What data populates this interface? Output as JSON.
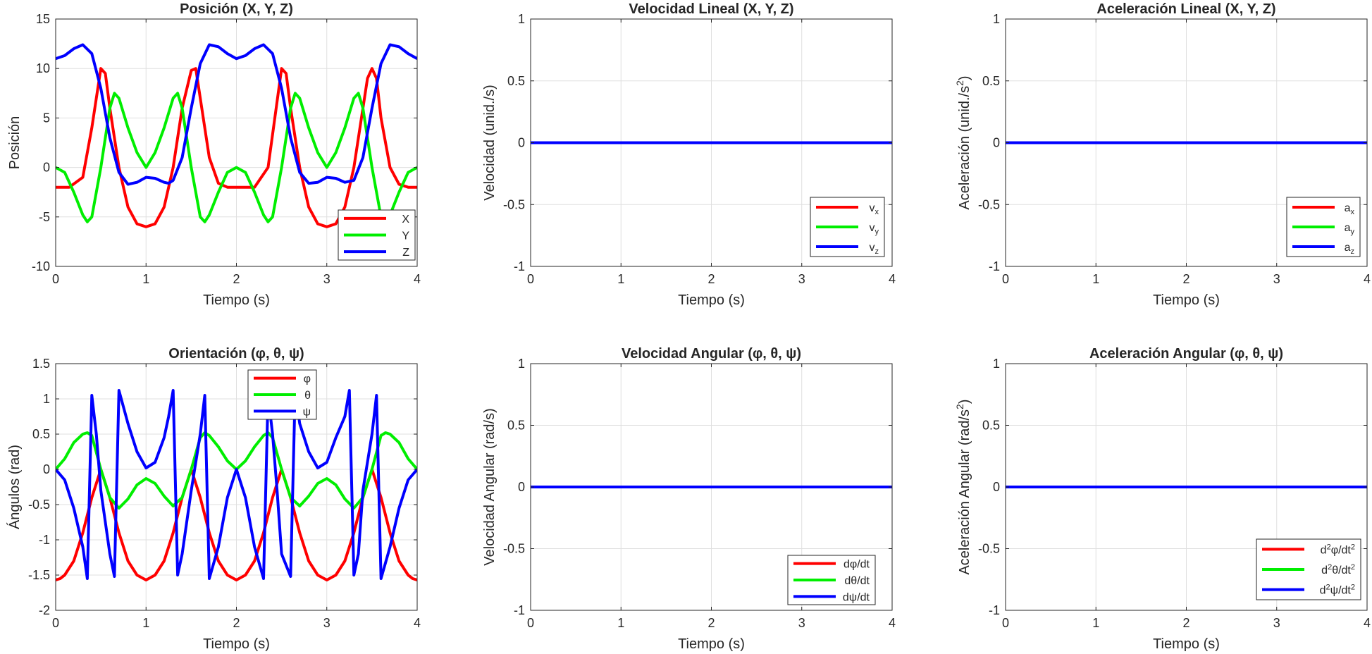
{
  "chart_data": [
    {
      "type": "line",
      "title": "Posición (X, Y, Z)",
      "xlabel": "Tiempo (s)",
      "ylabel": "Posición",
      "xlim": [
        0,
        4
      ],
      "ylim": [
        -10,
        15
      ],
      "xticks": [
        "0",
        "1",
        "2",
        "3",
        "4"
      ],
      "yticks": [
        "-10",
        "-5",
        "0",
        "5",
        "10",
        "15"
      ],
      "ytick_values": [
        -10,
        -5,
        0,
        5,
        10,
        15
      ],
      "grid": true,
      "legend_position": "bottom-right",
      "series": [
        {
          "name": "X",
          "color": "#ff0000",
          "x": [
            0,
            0.15,
            0.3,
            0.4,
            0.5,
            0.55,
            0.6,
            0.7,
            0.8,
            0.9,
            1.0,
            1.1,
            1.2,
            1.3,
            1.4,
            1.5,
            1.55,
            1.6,
            1.7,
            1.8,
            1.9,
            2.0,
            2.1,
            2.2,
            2.35,
            2.5,
            2.55,
            2.6,
            2.7,
            2.8,
            2.9,
            3.0,
            3.1,
            3.2,
            3.3,
            3.45,
            3.5,
            3.55,
            3.6,
            3.7,
            3.8,
            3.9,
            4.0
          ],
          "y": [
            -2,
            -2,
            -1,
            4,
            10,
            9.5,
            6,
            0,
            -4,
            -5.7,
            -6,
            -5.7,
            -4,
            0,
            6,
            9.8,
            10,
            7,
            1,
            -1.6,
            -2,
            -2,
            -2,
            -2,
            0,
            10,
            9.5,
            6,
            0,
            -4,
            -5.7,
            -6,
            -5.7,
            -4,
            0,
            9,
            10,
            9,
            5,
            0,
            -1.7,
            -2,
            -2
          ]
        },
        {
          "name": "Y",
          "color": "#00ee00",
          "x": [
            0,
            0.1,
            0.2,
            0.3,
            0.35,
            0.4,
            0.5,
            0.6,
            0.65,
            0.7,
            0.8,
            0.9,
            1.0,
            1.1,
            1.2,
            1.3,
            1.35,
            1.4,
            1.5,
            1.6,
            1.65,
            1.7,
            1.8,
            1.9,
            2.0,
            2.1,
            2.2,
            2.3,
            2.35,
            2.4,
            2.5,
            2.6,
            2.65,
            2.7,
            2.8,
            2.9,
            3.0,
            3.1,
            3.2,
            3.3,
            3.35,
            3.4,
            3.5,
            3.6,
            3.65,
            3.7,
            3.8,
            3.9,
            4.0
          ],
          "y": [
            0,
            -0.5,
            -2.5,
            -4.8,
            -5.5,
            -5,
            0,
            6,
            7.5,
            7,
            4,
            1.5,
            0,
            1.5,
            4,
            7,
            7.5,
            6,
            0,
            -5,
            -5.5,
            -4.8,
            -2.5,
            -0.5,
            0,
            -0.5,
            -2.5,
            -4.8,
            -5.5,
            -5,
            0,
            6,
            7.5,
            7,
            4,
            1.5,
            0,
            1.5,
            4,
            7,
            7.5,
            6,
            0,
            -5,
            -5.5,
            -4.8,
            -2.5,
            -0.5,
            0
          ]
        },
        {
          "name": "Z",
          "color": "#0000ff",
          "x": [
            0,
            0.1,
            0.2,
            0.3,
            0.4,
            0.5,
            0.6,
            0.7,
            0.8,
            0.9,
            1.0,
            1.1,
            1.2,
            1.25,
            1.3,
            1.4,
            1.5,
            1.6,
            1.7,
            1.8,
            1.9,
            2.0,
            2.1,
            2.2,
            2.3,
            2.4,
            2.5,
            2.6,
            2.7,
            2.8,
            2.9,
            3.0,
            3.1,
            3.2,
            3.3,
            3.4,
            3.5,
            3.6,
            3.7,
            3.8,
            3.9,
            4.0
          ],
          "y": [
            11,
            11.3,
            12,
            12.4,
            11.5,
            8,
            3,
            -0.5,
            -1.7,
            -1.5,
            -1,
            -1.1,
            -1.5,
            -1.6,
            -1.3,
            1,
            6,
            10.5,
            12.4,
            12.2,
            11.5,
            11,
            11.3,
            12,
            12.4,
            11.5,
            8,
            3,
            -0.5,
            -1.6,
            -1.5,
            -1,
            -1.1,
            -1.5,
            -1.3,
            1,
            6,
            10.5,
            12.4,
            12.2,
            11.5,
            11
          ]
        }
      ]
    },
    {
      "type": "line",
      "title": "Velocidad Lineal (X, Y, Z)",
      "xlabel": "Tiempo (s)",
      "ylabel": "Velocidad (unid./s)",
      "xlim": [
        0,
        4
      ],
      "ylim": [
        -1,
        1
      ],
      "xticks": [
        "0",
        "1",
        "2",
        "3",
        "4"
      ],
      "yticks": [
        "-1",
        "-0.5",
        "0",
        "0.5",
        "1"
      ],
      "ytick_values": [
        -1,
        -0.5,
        0,
        0.5,
        1
      ],
      "grid": true,
      "legend_position": "bottom-right",
      "series": [
        {
          "name": "v",
          "sub": "x",
          "color": "#ff0000",
          "x": [
            0,
            4
          ],
          "y": [
            0,
            0
          ]
        },
        {
          "name": "v",
          "sub": "y",
          "color": "#00ee00",
          "x": [
            0,
            4
          ],
          "y": [
            0,
            0
          ]
        },
        {
          "name": "v",
          "sub": "z",
          "color": "#0000ff",
          "x": [
            0,
            4
          ],
          "y": [
            0,
            0
          ]
        }
      ]
    },
    {
      "type": "line",
      "title": "Aceleración Lineal (X, Y, Z)",
      "xlabel": "Tiempo (s)",
      "ylabel": "Aceleración  (unid./s",
      "ylabel_sup": "2",
      "ylabel_end": ")",
      "xlim": [
        0,
        4
      ],
      "ylim": [
        -1,
        1
      ],
      "xticks": [
        "0",
        "1",
        "2",
        "3",
        "4"
      ],
      "yticks": [
        "-1",
        "-0.5",
        "0",
        "0.5",
        "1"
      ],
      "ytick_values": [
        -1,
        -0.5,
        0,
        0.5,
        1
      ],
      "grid": true,
      "legend_position": "bottom-right",
      "series": [
        {
          "name": "a",
          "sub": "x",
          "color": "#ff0000",
          "x": [
            0,
            4
          ],
          "y": [
            0,
            0
          ]
        },
        {
          "name": "a",
          "sub": "y",
          "color": "#00ee00",
          "x": [
            0,
            4
          ],
          "y": [
            0,
            0
          ]
        },
        {
          "name": "a",
          "sub": "z",
          "color": "#0000ff",
          "x": [
            0,
            4
          ],
          "y": [
            0,
            0
          ]
        }
      ]
    },
    {
      "type": "line",
      "title": "Orientación (φ, θ, ψ)",
      "xlabel": "Tiempo (s)",
      "ylabel": "Ángulos (rad)",
      "xlim": [
        0,
        4
      ],
      "ylim": [
        -2,
        1.5
      ],
      "xticks": [
        "0",
        "1",
        "2",
        "3",
        "4"
      ],
      "yticks": [
        "-2",
        "-1.5",
        "-1",
        "-0.5",
        "0",
        "0.5",
        "1",
        "1.5"
      ],
      "ytick_values": [
        -2,
        -1.5,
        -1,
        -0.5,
        0,
        0.5,
        1,
        1.5
      ],
      "grid": true,
      "legend_position": "top-right",
      "series": [
        {
          "name": "φ",
          "color": "#ff0000",
          "x": [
            0,
            0.05,
            0.1,
            0.2,
            0.3,
            0.4,
            0.5,
            0.6,
            0.7,
            0.8,
            0.9,
            1.0,
            1.1,
            1.2,
            1.3,
            1.4,
            1.5,
            1.6,
            1.7,
            1.8,
            1.9,
            2.0,
            2.1,
            2.2,
            2.3,
            2.4,
            2.5,
            2.6,
            2.7,
            2.8,
            2.9,
            3.0,
            3.1,
            3.2,
            3.3,
            3.4,
            3.5,
            3.6,
            3.7,
            3.8,
            3.9,
            3.95,
            4.0
          ],
          "y": [
            -1.57,
            -1.55,
            -1.5,
            -1.3,
            -0.9,
            -0.4,
            0,
            -0.4,
            -0.9,
            -1.3,
            -1.5,
            -1.57,
            -1.5,
            -1.3,
            -0.9,
            -0.4,
            0,
            -0.4,
            -0.9,
            -1.3,
            -1.5,
            -1.57,
            -1.5,
            -1.3,
            -0.9,
            -0.4,
            0,
            -0.4,
            -0.9,
            -1.3,
            -1.5,
            -1.57,
            -1.5,
            -1.3,
            -0.9,
            -0.4,
            0,
            -0.4,
            -0.9,
            -1.3,
            -1.5,
            -1.55,
            -1.57
          ]
        },
        {
          "name": "θ",
          "color": "#00ee00",
          "x": [
            0,
            0.1,
            0.2,
            0.3,
            0.35,
            0.4,
            0.5,
            0.6,
            0.7,
            0.8,
            0.9,
            1.0,
            1.1,
            1.2,
            1.3,
            1.4,
            1.5,
            1.6,
            1.65,
            1.7,
            1.8,
            1.9,
            2.0,
            2.1,
            2.2,
            2.3,
            2.35,
            2.4,
            2.5,
            2.6,
            2.7,
            2.8,
            2.9,
            3.0,
            3.1,
            3.2,
            3.3,
            3.4,
            3.5,
            3.6,
            3.65,
            3.7,
            3.8,
            3.9,
            4.0
          ],
          "y": [
            0,
            0.15,
            0.38,
            0.5,
            0.52,
            0.48,
            0,
            -0.4,
            -0.55,
            -0.42,
            -0.22,
            -0.13,
            -0.2,
            -0.38,
            -0.52,
            -0.4,
            0,
            0.45,
            0.52,
            0.48,
            0.32,
            0.12,
            0,
            0.12,
            0.32,
            0.48,
            0.52,
            0.45,
            0,
            -0.4,
            -0.52,
            -0.38,
            -0.2,
            -0.13,
            -0.22,
            -0.42,
            -0.55,
            -0.4,
            0,
            0.48,
            0.52,
            0.5,
            0.38,
            0.15,
            0
          ]
        },
        {
          "name": "ψ",
          "color": "#0000ff",
          "x": [
            0,
            0.1,
            0.2,
            0.3,
            0.35,
            0.4,
            0.45,
            0.5,
            0.6,
            0.65,
            0.7,
            0.8,
            0.9,
            1.0,
            1.1,
            1.2,
            1.25,
            1.3,
            1.35,
            1.4,
            1.5,
            1.6,
            1.65,
            1.7,
            1.8,
            1.9,
            2.0,
            2.1,
            2.2,
            2.3,
            2.35,
            2.4,
            2.45,
            2.5,
            2.6,
            2.65,
            2.7,
            2.8,
            2.9,
            3.0,
            3.1,
            3.2,
            3.25,
            3.3,
            3.35,
            3.4,
            3.5,
            3.55,
            3.6,
            3.7,
            3.8,
            3.9,
            4.0
          ],
          "y": [
            0,
            -0.15,
            -0.55,
            -1.1,
            -1.55,
            1.05,
            0.5,
            -0.3,
            -1.2,
            -1.52,
            1.12,
            0.65,
            0.25,
            0.02,
            0.1,
            0.45,
            0.75,
            1.12,
            -1.5,
            -1.2,
            -0.3,
            0.5,
            1.05,
            -1.55,
            -1.1,
            -0.4,
            0,
            -0.4,
            -1.1,
            -1.55,
            1.05,
            0.5,
            -0.3,
            -1.2,
            -1.52,
            1.12,
            0.65,
            0.25,
            0.02,
            0.1,
            0.45,
            0.75,
            1.12,
            -1.5,
            -1.2,
            -0.3,
            0.5,
            1.05,
            -1.55,
            -1.1,
            -0.55,
            -0.15,
            0
          ]
        }
      ]
    },
    {
      "type": "line",
      "title": "Velocidad Angular (φ, θ, ψ)",
      "xlabel": "Tiempo (s)",
      "ylabel": "Velocidad Angular (rad/s)",
      "xlim": [
        0,
        4
      ],
      "ylim": [
        -1,
        1
      ],
      "xticks": [
        "0",
        "1",
        "2",
        "3",
        "4"
      ],
      "yticks": [
        "-1",
        "-0.5",
        "0",
        "0.5",
        "1"
      ],
      "ytick_values": [
        -1,
        -0.5,
        0,
        0.5,
        1
      ],
      "grid": true,
      "legend_position": "bottom-right",
      "series": [
        {
          "name": "dφ/dt",
          "color": "#ff0000",
          "x": [
            0,
            4
          ],
          "y": [
            0,
            0
          ]
        },
        {
          "name": "dθ/dt",
          "color": "#00ee00",
          "x": [
            0,
            4
          ],
          "y": [
            0,
            0
          ]
        },
        {
          "name": "dψ/dt",
          "color": "#0000ff",
          "x": [
            0,
            4
          ],
          "y": [
            0,
            0
          ]
        }
      ]
    },
    {
      "type": "line",
      "title": "Aceleración Angular (φ, θ, ψ)",
      "xlabel": "Tiempo (s)",
      "ylabel": "Aceleración  Angular  (rad/s",
      "ylabel_sup": "2",
      "ylabel_end": ")",
      "xlim": [
        0,
        4
      ],
      "ylim": [
        -1,
        1
      ],
      "xticks": [
        "0",
        "1",
        "2",
        "3",
        "4"
      ],
      "yticks": [
        "-1",
        "-0.5",
        "0",
        "0.5",
        "1"
      ],
      "ytick_values": [
        -1,
        -0.5,
        0,
        0.5,
        1
      ],
      "grid": true,
      "legend_position": "bottom-right",
      "series": [
        {
          "name": "d",
          "sup": "2",
          "rest": "φ/dt",
          "sup2": "2",
          "color": "#ff0000",
          "x": [
            0,
            4
          ],
          "y": [
            0,
            0
          ]
        },
        {
          "name": "d",
          "sup": "2",
          "rest": "θ/dt",
          "sup2": "2",
          "color": "#00ee00",
          "x": [
            0,
            4
          ],
          "y": [
            0,
            0
          ]
        },
        {
          "name": "d",
          "sup": "2",
          "rest": "ψ/dt",
          "sup2": "2",
          "color": "#0000ff",
          "x": [
            0,
            4
          ],
          "y": [
            0,
            0
          ]
        }
      ]
    }
  ]
}
